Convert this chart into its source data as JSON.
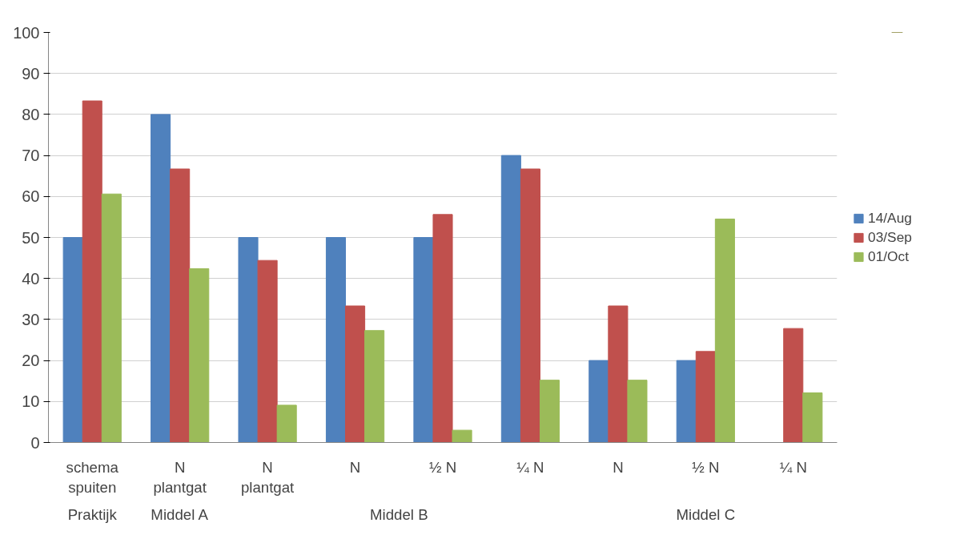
{
  "chart_data": {
    "type": "bar",
    "categories": [
      "schema\nspuiten",
      "N\nplantgat",
      "N\nplantgat",
      "N",
      "½ N",
      "¼ N",
      "N",
      "½ N",
      "¼ N"
    ],
    "series": [
      {
        "name": "14/Aug",
        "color": "#4f81bd",
        "values": [
          50,
          80,
          50,
          50,
          50,
          70,
          20,
          20,
          0
        ]
      },
      {
        "name": "03/Sep",
        "color": "#c0504d",
        "values": [
          83.3,
          66.7,
          44.4,
          33.3,
          55.6,
          66.7,
          33.3,
          22.2,
          27.8
        ]
      },
      {
        "name": "01/Oct",
        "color": "#9bbb59",
        "values": [
          60.6,
          42.4,
          9.1,
          27.3,
          3.0,
          15.2,
          15.2,
          54.5,
          12.1
        ]
      }
    ],
    "annotations": [
      "Praktijk",
      "Middel A",
      "Middel B",
      "Middel C"
    ],
    "ylim": [
      0,
      100
    ],
    "yticks": [
      0,
      10,
      20,
      30,
      40,
      50,
      60,
      70,
      80,
      90,
      100
    ],
    "grid": "y",
    "legend": "right"
  }
}
